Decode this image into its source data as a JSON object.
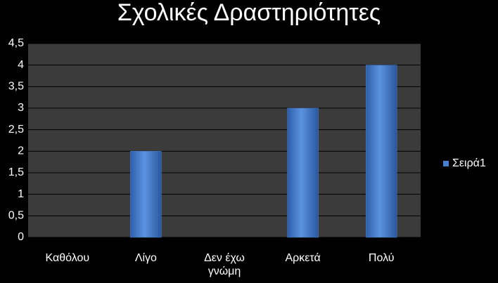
{
  "chart_data": {
    "type": "bar",
    "title": "Σχολικές Δραστηριότητες",
    "categories": [
      "Καθόλου",
      "Λίγο",
      "Δεν έχω γνώμη",
      "Αρκετά",
      "Πολύ"
    ],
    "series": [
      {
        "name": "Σειρά1",
        "color": "#4a7fd0",
        "values": [
          0,
          2,
          0,
          3,
          4
        ]
      }
    ],
    "ylim": [
      0,
      4.5
    ],
    "yticks": [
      0,
      {
        "value": 0.5,
        "label": "0,5"
      },
      1,
      {
        "value": 1.5,
        "label": "1,5"
      },
      2,
      {
        "value": 2.5,
        "label": "2,5"
      },
      3,
      {
        "value": 3.5,
        "label": "3,5"
      },
      4,
      {
        "value": 4.5,
        "label": "4,5"
      }
    ],
    "grid": true,
    "legend": "right"
  }
}
